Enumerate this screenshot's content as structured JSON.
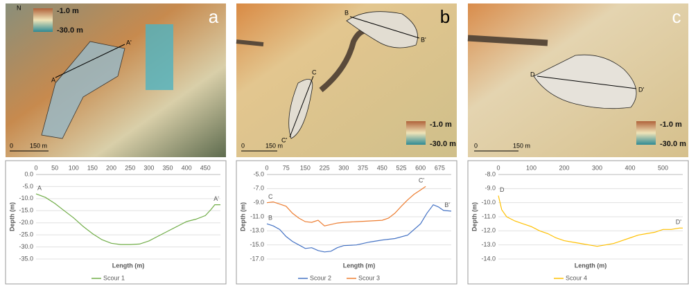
{
  "chart_data": [
    {
      "type": "line",
      "y_label": "Depth (m)",
      "x_label": "Length (m)",
      "grid": true,
      "xlim": [
        0,
        490
      ],
      "xticks": [
        0,
        50,
        100,
        150,
        200,
        250,
        300,
        350,
        400,
        450
      ],
      "ylim": [
        -35,
        0
      ],
      "yticks": [
        {
          "value": 0,
          "label": "0.0"
        },
        {
          "value": -5,
          "label": "-5.0"
        },
        {
          "value": -10,
          "label": "-10.0"
        },
        {
          "value": -15,
          "label": "-15.0"
        },
        {
          "value": -20,
          "label": "-20.0"
        },
        {
          "value": -25,
          "label": "-25.0"
        },
        {
          "value": -30,
          "label": "-30.0"
        },
        {
          "value": -35,
          "label": "-35.0"
        }
      ],
      "series": [
        {
          "name": "Scour 1",
          "color": "#70ad47",
          "labels": [
            "A",
            "A'"
          ],
          "x": [
            0,
            25,
            50,
            75,
            100,
            125,
            150,
            175,
            200,
            225,
            250,
            275,
            300,
            325,
            350,
            375,
            400,
            425,
            450,
            465,
            475,
            490
          ],
          "values": [
            -8,
            -9.5,
            -12,
            -15,
            -18,
            -21.5,
            -24.5,
            -27,
            -28.5,
            -29,
            -29,
            -28.8,
            -27.5,
            -25.5,
            -23.5,
            -21.5,
            -19.5,
            -18.5,
            -17,
            -14.5,
            -12.5,
            -12.5
          ]
        }
      ]
    },
    {
      "type": "line",
      "y_label": "Depth (m)",
      "x_label": "Length (m)",
      "grid": true,
      "xlim": [
        0,
        720
      ],
      "xticks": [
        0,
        75,
        150,
        225,
        300,
        375,
        450,
        525,
        600,
        675
      ],
      "ylim": [
        -17,
        -5
      ],
      "yticks": [
        {
          "value": -5,
          "label": "-5.0"
        },
        {
          "value": -7,
          "label": "-7.0"
        },
        {
          "value": -9,
          "label": "-9.0"
        },
        {
          "value": -11,
          "label": "-11.0"
        },
        {
          "value": -13,
          "label": "-13.0"
        },
        {
          "value": -15,
          "label": "-15.0"
        },
        {
          "value": -17,
          "label": "-17.0"
        }
      ],
      "series": [
        {
          "name": "Scour 2",
          "color": "#4472c4",
          "labels": [
            "B",
            "B'"
          ],
          "x": [
            0,
            25,
            50,
            75,
            100,
            125,
            150,
            175,
            200,
            225,
            250,
            275,
            300,
            350,
            400,
            450,
            500,
            550,
            600,
            625,
            650,
            670,
            690,
            720
          ],
          "values": [
            -12,
            -12.3,
            -12.8,
            -13.8,
            -14.5,
            -15,
            -15.5,
            -15.4,
            -15.8,
            -16,
            -15.9,
            -15.4,
            -15.1,
            -15,
            -14.6,
            -14.3,
            -14.1,
            -13.6,
            -12,
            -10.5,
            -9.3,
            -9.6,
            -10.1,
            -10.2
          ]
        },
        {
          "name": "Scour 3",
          "color": "#ed7d31",
          "labels": [
            "C",
            "C'"
          ],
          "x": [
            0,
            25,
            50,
            75,
            100,
            125,
            150,
            175,
            200,
            225,
            250,
            275,
            300,
            350,
            400,
            450,
            475,
            500,
            525,
            550,
            575,
            600,
            620
          ],
          "values": [
            -9,
            -8.9,
            -9.2,
            -9.5,
            -10.5,
            -11.2,
            -11.7,
            -11.8,
            -11.5,
            -12.3,
            -12.1,
            -11.9,
            -11.8,
            -11.7,
            -11.6,
            -11.5,
            -11.2,
            -10.5,
            -9.5,
            -8.6,
            -7.8,
            -7.2,
            -6.7
          ]
        }
      ]
    },
    {
      "type": "line",
      "y_label": "Depth (m)",
      "x_label": "Length (m)",
      "grid": true,
      "xlim": [
        0,
        560
      ],
      "xticks": [
        0,
        100,
        200,
        300,
        400,
        500
      ],
      "ylim": [
        -14,
        -8
      ],
      "yticks": [
        {
          "value": -8,
          "label": "-8.0"
        },
        {
          "value": -9,
          "label": "-9.0"
        },
        {
          "value": -10,
          "label": "-10.0"
        },
        {
          "value": -11,
          "label": "-11.0"
        },
        {
          "value": -12,
          "label": "-12.0"
        },
        {
          "value": -13,
          "label": "-13.0"
        },
        {
          "value": -14,
          "label": "-14.0"
        }
      ],
      "series": [
        {
          "name": "Scour 4",
          "color": "#ffc000",
          "labels": [
            "D",
            "D'"
          ],
          "x": [
            0,
            10,
            25,
            50,
            75,
            100,
            125,
            150,
            175,
            200,
            225,
            250,
            275,
            300,
            325,
            350,
            375,
            400,
            425,
            450,
            475,
            500,
            525,
            550,
            560
          ],
          "values": [
            -9.5,
            -10.5,
            -11,
            -11.3,
            -11.5,
            -11.7,
            -12,
            -12.2,
            -12.5,
            -12.7,
            -12.8,
            -12.9,
            -13,
            -13.1,
            -13,
            -12.9,
            -12.7,
            -12.5,
            -12.3,
            -12.2,
            -12.1,
            -11.9,
            -11.9,
            -11.8,
            -11.8
          ]
        }
      ]
    }
  ],
  "maps": [
    {
      "panel": "a",
      "north": "N",
      "colorbar": [
        "-1.0 m",
        "-30.0 m"
      ],
      "scale": [
        "0",
        "150 m"
      ],
      "profile": [
        "A",
        "A'"
      ]
    },
    {
      "panel": "b",
      "colorbar": [
        "-1.0 m",
        "-30.0 m"
      ],
      "scale": [
        "0",
        "150 m"
      ],
      "profile": [
        "B",
        "B'",
        "C",
        "C'"
      ]
    },
    {
      "panel": "c",
      "colorbar": [
        "-1.0 m",
        "-30.0 m"
      ],
      "scale": [
        "0",
        "150 m"
      ],
      "profile": [
        "D",
        "D'"
      ]
    }
  ]
}
